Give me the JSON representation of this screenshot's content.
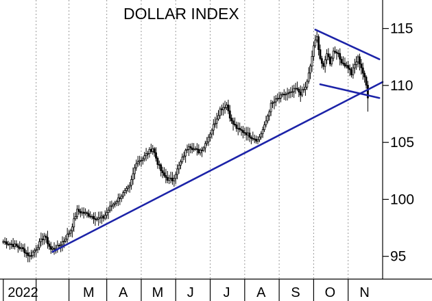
{
  "chart_data": {
    "type": "candlestick",
    "title": "DOLLAR INDEX",
    "ylim": [
      93,
      117.5
    ],
    "y_ticks": [
      95,
      100,
      105,
      110,
      115
    ],
    "y_tick_labels": [
      "95",
      "100",
      "105",
      "110",
      "115"
    ],
    "x_unit": "trading day index (0 = first trading day of 2022)",
    "xlim": [
      -2,
      231
    ],
    "month_labels": [
      {
        "label": "2022",
        "x": 12
      },
      {
        "label": "M",
        "x": 52
      },
      {
        "label": "A",
        "x": 73
      },
      {
        "label": "M",
        "x": 94
      },
      {
        "label": "J",
        "x": 114
      },
      {
        "label": "J",
        "x": 136
      },
      {
        "label": "A",
        "x": 157
      },
      {
        "label": "S",
        "x": 178
      },
      {
        "label": "O",
        "x": 199
      },
      {
        "label": "N",
        "x": 220
      }
    ],
    "month_boundaries": [
      0,
      20,
      40,
      63,
      84,
      105,
      126,
      147,
      168,
      189,
      210
    ],
    "grid": "vertical dotted lines at month boundaries",
    "price_anchors": [
      [
        0,
        96.3
      ],
      [
        4,
        96.1
      ],
      [
        8,
        95.9
      ],
      [
        12,
        95.6
      ],
      [
        16,
        95.0
      ],
      [
        20,
        95.7
      ],
      [
        25,
        96.8
      ],
      [
        29,
        95.6
      ],
      [
        33,
        95.8
      ],
      [
        37,
        96.4
      ],
      [
        41,
        97.3
      ],
      [
        45,
        99.0
      ],
      [
        49,
        98.8
      ],
      [
        53,
        98.6
      ],
      [
        57,
        98.3
      ],
      [
        61,
        98.4
      ],
      [
        65,
        99.3
      ],
      [
        69,
        99.9
      ],
      [
        73,
        100.5
      ],
      [
        77,
        101.1
      ],
      [
        81,
        103.3
      ],
      [
        85,
        103.6
      ],
      [
        88,
        104.1
      ],
      [
        91,
        104.5
      ],
      [
        94,
        103.2
      ],
      [
        97,
        102.2
      ],
      [
        100,
        101.8
      ],
      [
        103,
        101.7
      ],
      [
        106,
        102.6
      ],
      [
        110,
        103.9
      ],
      [
        113,
        104.8
      ],
      [
        116,
        104.4
      ],
      [
        119,
        104.2
      ],
      [
        122,
        104.6
      ],
      [
        125,
        105.5
      ],
      [
        129,
        106.8
      ],
      [
        132,
        107.9
      ],
      [
        136,
        108.3
      ],
      [
        139,
        106.8
      ],
      [
        143,
        106.1
      ],
      [
        147,
        105.9
      ],
      [
        151,
        105.5
      ],
      [
        155,
        105.2
      ],
      [
        159,
        106.4
      ],
      [
        163,
        108.3
      ],
      [
        167,
        108.8
      ],
      [
        171,
        109.2
      ],
      [
        175,
        109.3
      ],
      [
        178,
        109.7
      ],
      [
        181,
        109.3
      ],
      [
        184,
        109.8
      ],
      [
        187,
        111.6
      ],
      [
        189,
        113.5
      ],
      [
        191,
        114.2
      ],
      [
        193,
        112.4
      ],
      [
        195,
        111.5
      ],
      [
        197,
        112.9
      ],
      [
        199,
        112.0
      ],
      [
        201,
        113.0
      ],
      [
        203,
        113.0
      ],
      [
        205,
        112.3
      ],
      [
        208,
        111.8
      ],
      [
        210,
        111.6
      ],
      [
        212,
        111.0
      ],
      [
        214,
        111.8
      ],
      [
        216,
        112.4
      ],
      [
        218,
        111.6
      ],
      [
        220,
        110.6
      ],
      [
        221,
        110.0
      ],
      [
        222,
        108.9
      ]
    ],
    "annotations": {
      "support_trendline": [
        [
          30,
          95.4
        ],
        [
          231,
          110.3
        ]
      ],
      "upper_wedge_line": [
        [
          190,
          114.9
        ],
        [
          229,
          112.3
        ]
      ],
      "lower_wedge_line": [
        [
          193,
          110.1
        ],
        [
          229,
          108.9
        ]
      ]
    },
    "colors": {
      "candles": "#000000",
      "trendlines": "#1c23a8",
      "grid": "#9a9a9a",
      "axis": "#000000"
    }
  }
}
